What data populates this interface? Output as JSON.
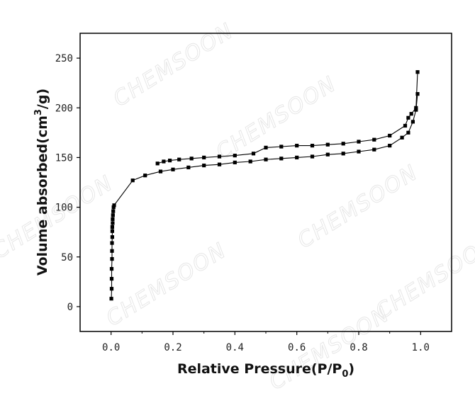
{
  "chart_data": {
    "type": "line",
    "title": "",
    "xlabel_main": "Relative Pressure(P/P",
    "xlabel_sub": "0",
    "xlabel_tail": ")",
    "ylabel_main": "Volume absorbed(cm",
    "ylabel_sup": "3",
    "ylabel_tail": "/g)",
    "xlim": [
      -0.1,
      1.1
    ],
    "ylim": [
      -25,
      275
    ],
    "xticks": [
      {
        "value": 0.0,
        "label": "0.0"
      },
      {
        "value": 0.2,
        "label": "0.2"
      },
      {
        "value": 0.4,
        "label": "0.4"
      },
      {
        "value": 0.6,
        "label": "0.6"
      },
      {
        "value": 0.8,
        "label": "0.8"
      },
      {
        "value": 1.0,
        "label": "1.0"
      }
    ],
    "yticks": [
      {
        "value": 0,
        "label": "0"
      },
      {
        "value": 50,
        "label": "50"
      },
      {
        "value": 100,
        "label": "100"
      },
      {
        "value": 150,
        "label": "150"
      },
      {
        "value": 200,
        "label": "200"
      },
      {
        "value": 250,
        "label": "250"
      }
    ],
    "grid": false,
    "legend": "none",
    "marker": "square",
    "line_color": "#000000",
    "watermark_text": "CHEMSOON",
    "series": [
      {
        "x": [
          0.001,
          0.002,
          0.002,
          0.002,
          0.003,
          0.003,
          0.003,
          0.004,
          0.004,
          0.004,
          0.005,
          0.005,
          0.006,
          0.007,
          0.008,
          0.01,
          0.07,
          0.11,
          0.16,
          0.2,
          0.25,
          0.3,
          0.35,
          0.4,
          0.45,
          0.5,
          0.55,
          0.6,
          0.65,
          0.7,
          0.75,
          0.8,
          0.85,
          0.9,
          0.94,
          0.96,
          0.975,
          0.985,
          0.99
        ],
        "y": [
          8,
          18,
          28,
          38,
          48,
          56,
          64,
          70,
          76,
          80,
          84,
          88,
          92,
          96,
          100,
          102,
          127,
          132,
          136,
          138,
          140,
          142,
          143,
          145,
          146,
          148,
          149,
          150,
          151,
          153,
          154,
          156,
          158,
          162,
          170,
          175,
          186,
          198,
          214
        ]
      },
      {
        "x": [
          0.99,
          0.985,
          0.97,
          0.96,
          0.95,
          0.9,
          0.85,
          0.8,
          0.75,
          0.7,
          0.65,
          0.6,
          0.55,
          0.5,
          0.46,
          0.4,
          0.35,
          0.3,
          0.26,
          0.22,
          0.19,
          0.17,
          0.15
        ],
        "y": [
          236,
          200,
          194,
          190,
          182,
          172,
          168,
          166,
          164,
          163,
          162,
          162,
          161,
          160,
          154,
          152,
          151,
          150,
          149,
          148,
          147,
          146,
          144
        ]
      }
    ]
  }
}
